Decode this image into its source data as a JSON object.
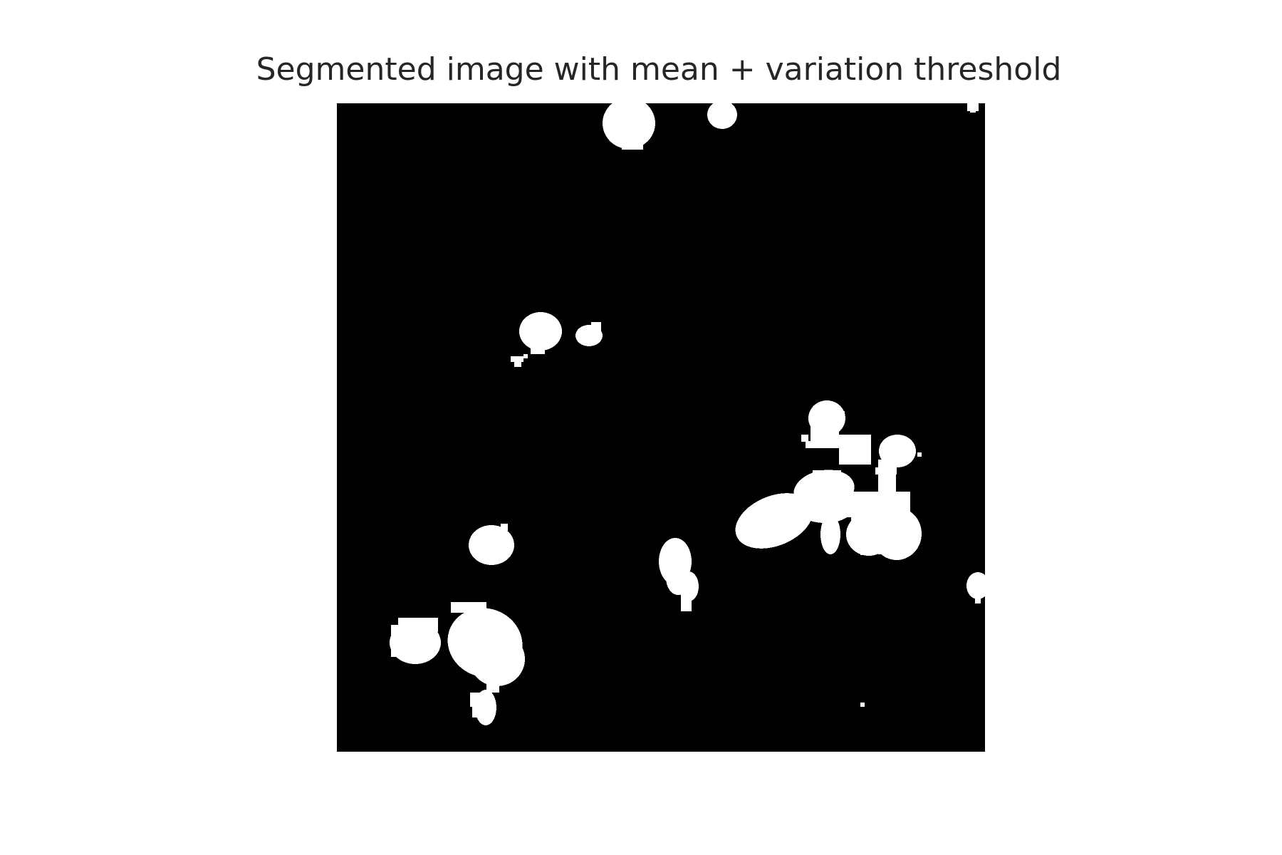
{
  "figure": {
    "title": "Segmented image with mean + variation threshold"
  },
  "image": {
    "background_color": "#000000",
    "foreground_color": "#ffffff",
    "axes_visible": false
  }
}
